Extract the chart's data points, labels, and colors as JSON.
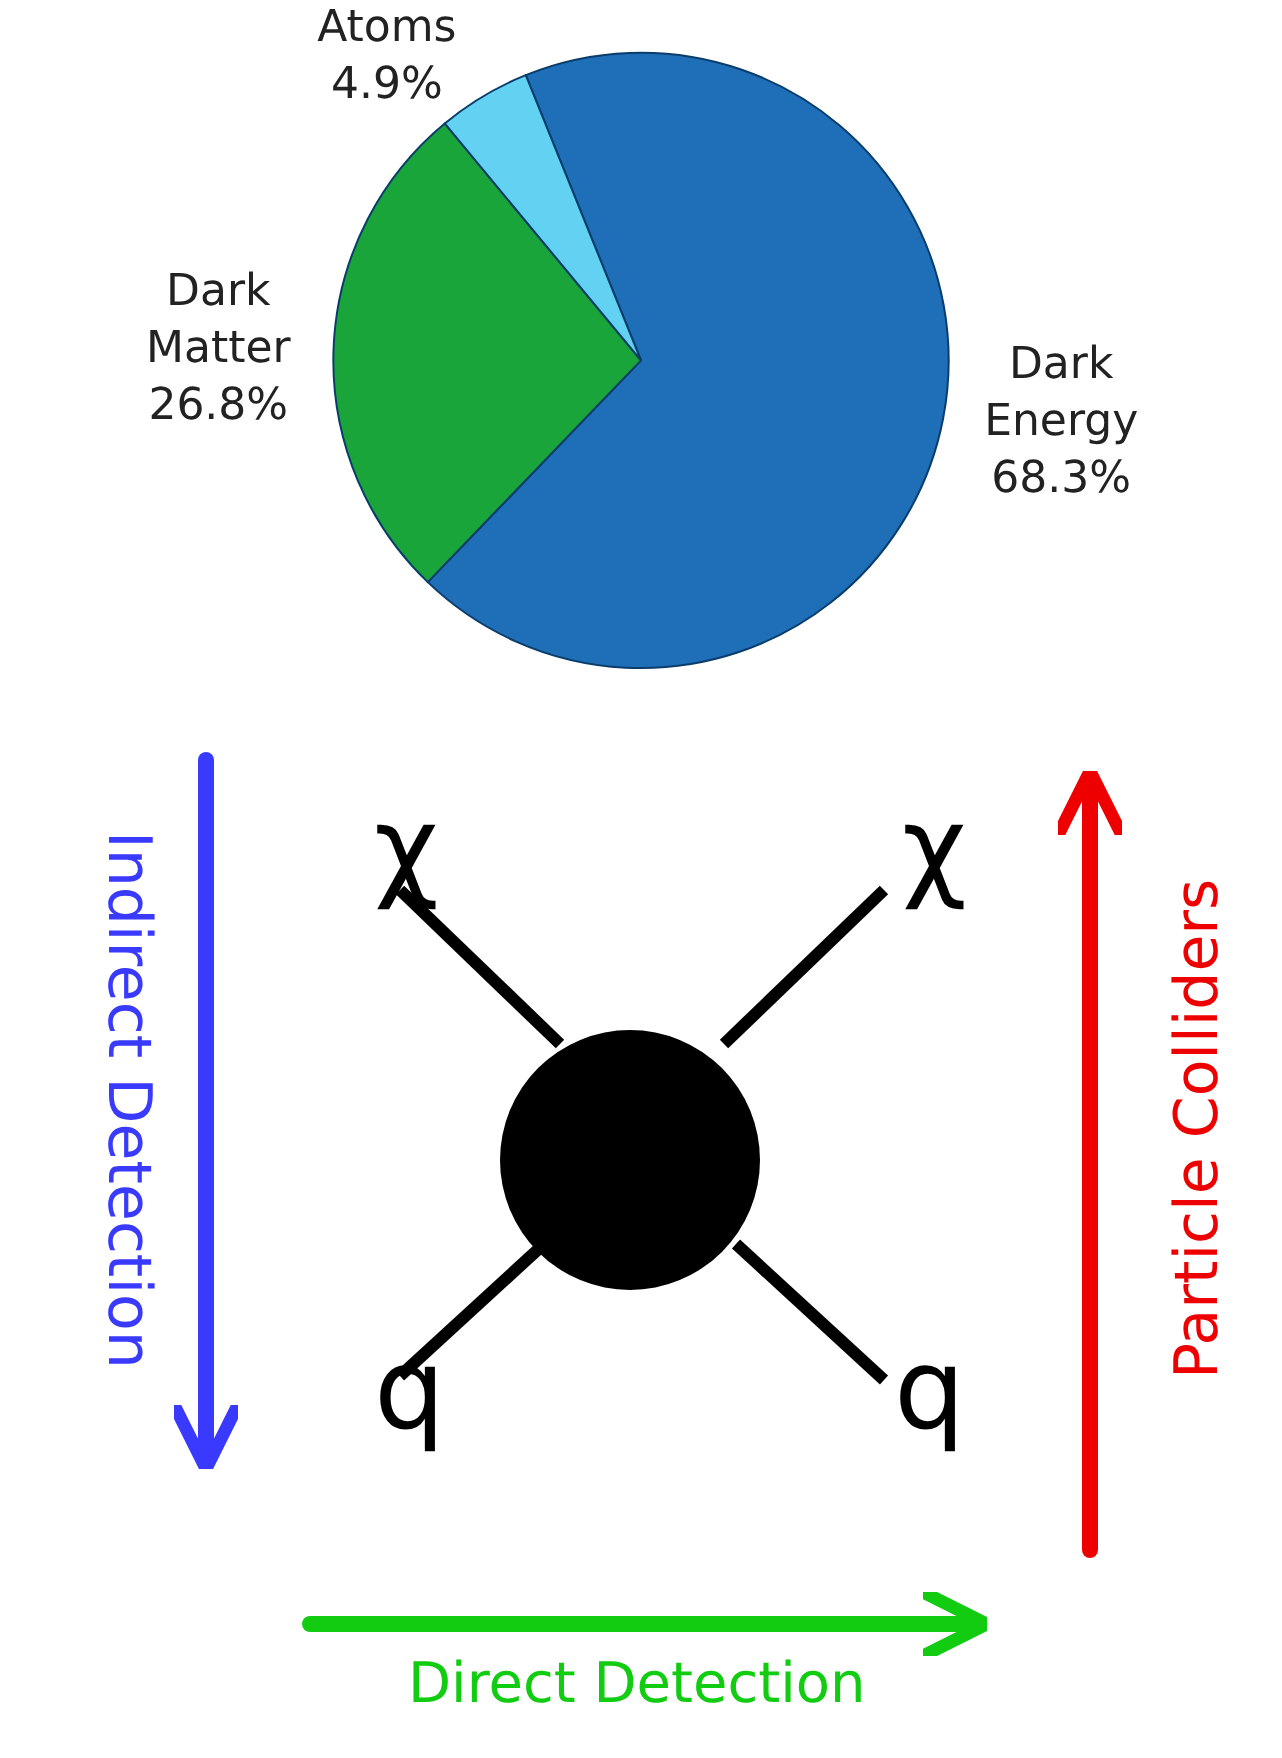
{
  "chart_data": {
    "type": "pie",
    "categories": [
      "Dark Energy",
      "Dark Matter",
      "Atoms"
    ],
    "values": [
      68.3,
      26.8,
      4.9
    ],
    "value_labels": [
      "68.3%",
      "26.8%",
      "4.9%"
    ],
    "colors": [
      "#1f6fb8",
      "#1aa53a",
      "#63d2f2"
    ],
    "legend": false,
    "annotations": [
      "χ",
      "χ",
      "q",
      "q",
      "Indirect Detection",
      "Particle Colliders",
      "Direct Detection"
    ]
  }
}
